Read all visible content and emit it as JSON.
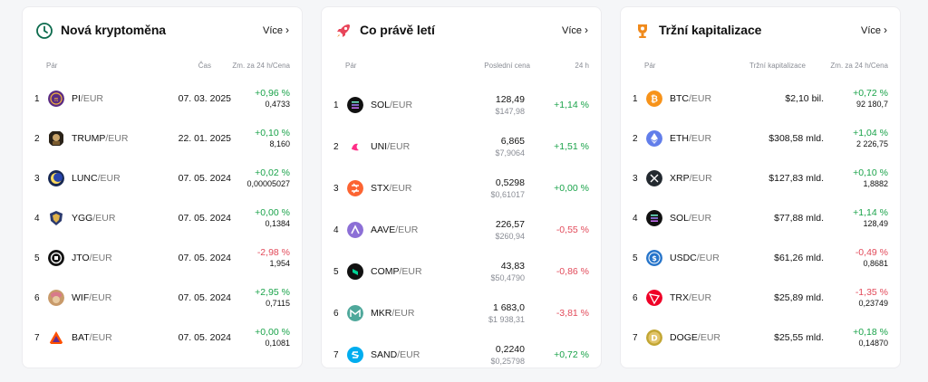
{
  "colors": {
    "positive": "#1aa34a",
    "negative": "#e24a5a"
  },
  "cards": [
    {
      "title": "Nová kryptoměna",
      "icon": "clock-icon",
      "more": "Více",
      "headers": [
        "Pár",
        "Čas",
        "Zm. za 24 h/Cena"
      ],
      "rows": [
        {
          "rank": "1",
          "base": "PI",
          "quote": "/EUR",
          "icon": "pi-coin-icon",
          "mid": "07. 03. 2025",
          "change": "+0,96 %",
          "price": "0,4733",
          "dir": "pos"
        },
        {
          "rank": "2",
          "base": "TRUMP",
          "quote": "/EUR",
          "icon": "trump-coin-icon",
          "mid": "22. 01. 2025",
          "change": "+0,10 %",
          "price": "8,160",
          "dir": "pos"
        },
        {
          "rank": "3",
          "base": "LUNC",
          "quote": "/EUR",
          "icon": "lunc-coin-icon",
          "mid": "07. 05. 2024",
          "change": "+0,02 %",
          "price": "0,00005027",
          "dir": "pos"
        },
        {
          "rank": "4",
          "base": "YGG",
          "quote": "/EUR",
          "icon": "ygg-coin-icon",
          "mid": "07. 05. 2024",
          "change": "+0,00 %",
          "price": "0,1384",
          "dir": "pos"
        },
        {
          "rank": "5",
          "base": "JTO",
          "quote": "/EUR",
          "icon": "jto-coin-icon",
          "mid": "07. 05. 2024",
          "change": "-2,98 %",
          "price": "1,954",
          "dir": "neg"
        },
        {
          "rank": "6",
          "base": "WIF",
          "quote": "/EUR",
          "icon": "wif-coin-icon",
          "mid": "07. 05. 2024",
          "change": "+2,95 %",
          "price": "0,7115",
          "dir": "pos"
        },
        {
          "rank": "7",
          "base": "BAT",
          "quote": "/EUR",
          "icon": "bat-coin-icon",
          "mid": "07. 05. 2024",
          "change": "+0,00 %",
          "price": "0,1081",
          "dir": "pos"
        }
      ]
    },
    {
      "title": "Co právě letí",
      "icon": "rocket-icon",
      "more": "Více",
      "headers": [
        "Pár",
        "Poslední cena",
        "24 h"
      ],
      "rows": [
        {
          "rank": "1",
          "base": "SOL",
          "quote": "/EUR",
          "icon": "sol-coin-icon",
          "price": "128,49",
          "usd": "$147,98",
          "change": "+1,14 %",
          "dir": "pos"
        },
        {
          "rank": "2",
          "base": "UNI",
          "quote": "/EUR",
          "icon": "uni-coin-icon",
          "price": "6,865",
          "usd": "$7,9064",
          "change": "+1,51 %",
          "dir": "pos"
        },
        {
          "rank": "3",
          "base": "STX",
          "quote": "/EUR",
          "icon": "stx-coin-icon",
          "price": "0,5298",
          "usd": "$0,61017",
          "change": "+0,00 %",
          "dir": "pos"
        },
        {
          "rank": "4",
          "base": "AAVE",
          "quote": "/EUR",
          "icon": "aave-coin-icon",
          "price": "226,57",
          "usd": "$260,94",
          "change": "-0,55 %",
          "dir": "neg"
        },
        {
          "rank": "5",
          "base": "COMP",
          "quote": "/EUR",
          "icon": "comp-coin-icon",
          "price": "43,83",
          "usd": "$50,4790",
          "change": "-0,86 %",
          "dir": "neg"
        },
        {
          "rank": "6",
          "base": "MKR",
          "quote": "/EUR",
          "icon": "mkr-coin-icon",
          "price": "1 683,0",
          "usd": "$1 938,31",
          "change": "-3,81 %",
          "dir": "neg"
        },
        {
          "rank": "7",
          "base": "SAND",
          "quote": "/EUR",
          "icon": "sand-coin-icon",
          "price": "0,2240",
          "usd": "$0,25798",
          "change": "+0,72 %",
          "dir": "pos"
        }
      ]
    },
    {
      "title": "Tržní kapitalizace",
      "icon": "trophy-icon",
      "more": "Více",
      "headers": [
        "Pár",
        "Tržní kapitalizace",
        "Zm. za 24 h/Cena"
      ],
      "rows": [
        {
          "rank": "1",
          "base": "BTC",
          "quote": "/EUR",
          "icon": "btc-coin-icon",
          "mid": "$2,10 bil.",
          "change": "+0,72 %",
          "price": "92 180,7",
          "dir": "pos"
        },
        {
          "rank": "2",
          "base": "ETH",
          "quote": "/EUR",
          "icon": "eth-coin-icon",
          "mid": "$308,58 mld.",
          "change": "+1,04 %",
          "price": "2 226,75",
          "dir": "pos"
        },
        {
          "rank": "3",
          "base": "XRP",
          "quote": "/EUR",
          "icon": "xrp-coin-icon",
          "mid": "$127,83 mld.",
          "change": "+0,10 %",
          "price": "1,8882",
          "dir": "pos"
        },
        {
          "rank": "4",
          "base": "SOL",
          "quote": "/EUR",
          "icon": "sol-coin-icon",
          "mid": "$77,88 mld.",
          "change": "+1,14 %",
          "price": "128,49",
          "dir": "pos"
        },
        {
          "rank": "5",
          "base": "USDC",
          "quote": "/EUR",
          "icon": "usdc-coin-icon",
          "mid": "$61,26 mld.",
          "change": "-0,49 %",
          "price": "0,8681",
          "dir": "neg"
        },
        {
          "rank": "6",
          "base": "TRX",
          "quote": "/EUR",
          "icon": "trx-coin-icon",
          "mid": "$25,89 mld.",
          "change": "-1,35 %",
          "price": "0,23749",
          "dir": "neg"
        },
        {
          "rank": "7",
          "base": "DOGE",
          "quote": "/EUR",
          "icon": "doge-coin-icon",
          "mid": "$25,55 mld.",
          "change": "+0,18 %",
          "price": "0,14870",
          "dir": "pos"
        }
      ]
    }
  ]
}
